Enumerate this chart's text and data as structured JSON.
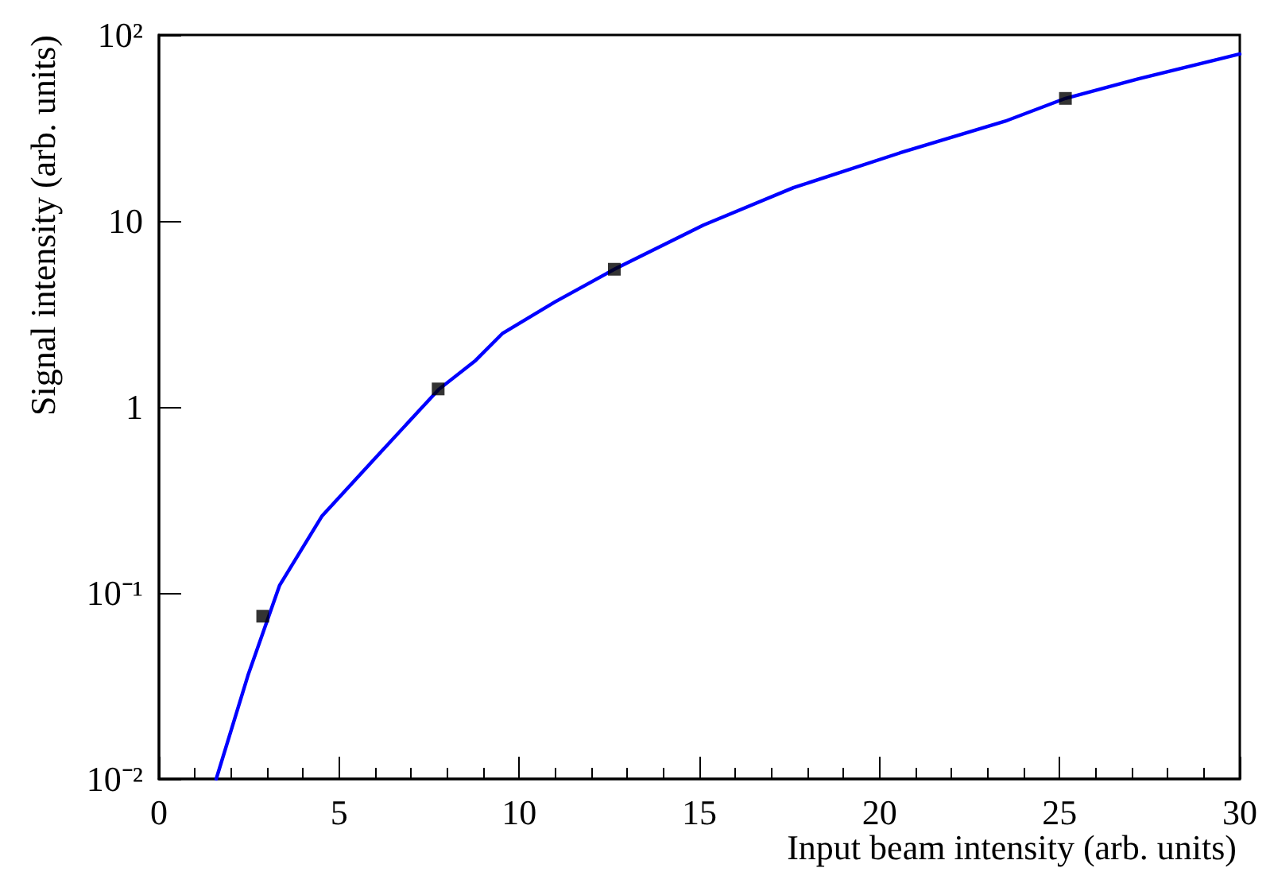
{
  "chart_data": {
    "type": "scatter",
    "xlabel": "Input beam intensity (arb. units)",
    "ylabel": "Signal intensity (arb. units)",
    "log": "y",
    "xlim": [
      0,
      30
    ],
    "xticks": [
      0,
      5,
      10,
      15,
      20,
      25,
      30
    ],
    "ylim": [
      0.01,
      100
    ],
    "yticks": [
      {
        "value": 0.01,
        "label": "10⁻²"
      },
      {
        "value": 0.1,
        "label": "10⁻¹"
      },
      1,
      10,
      {
        "value": 100,
        "label": "10²"
      }
    ],
    "grid": false,
    "series": [
      {
        "type": "scatter",
        "marker": "square",
        "color": "#000000",
        "x": [
          2.88,
          7.75,
          12.64,
          25.16
        ],
        "values": [
          0.075,
          1.25,
          5.5,
          45.6
        ]
      },
      {
        "type": "line",
        "marker": "none",
        "line_style": "solid",
        "color": "#0000ff",
        "x": [
          1.59,
          2.47,
          3.35,
          4.53,
          6.0,
          7.76,
          8.79,
          9.53,
          11.0,
          12.64,
          15.11,
          17.61,
          20.56,
          23.49,
          25.16,
          27.17,
          30
        ],
        "values": [
          0.01,
          0.036,
          0.11,
          0.26,
          0.53,
          1.24,
          1.78,
          2.48,
          3.68,
          5.5,
          9.5,
          15.1,
          23.2,
          34.4,
          45.6,
          58,
          79
        ]
      }
    ]
  }
}
